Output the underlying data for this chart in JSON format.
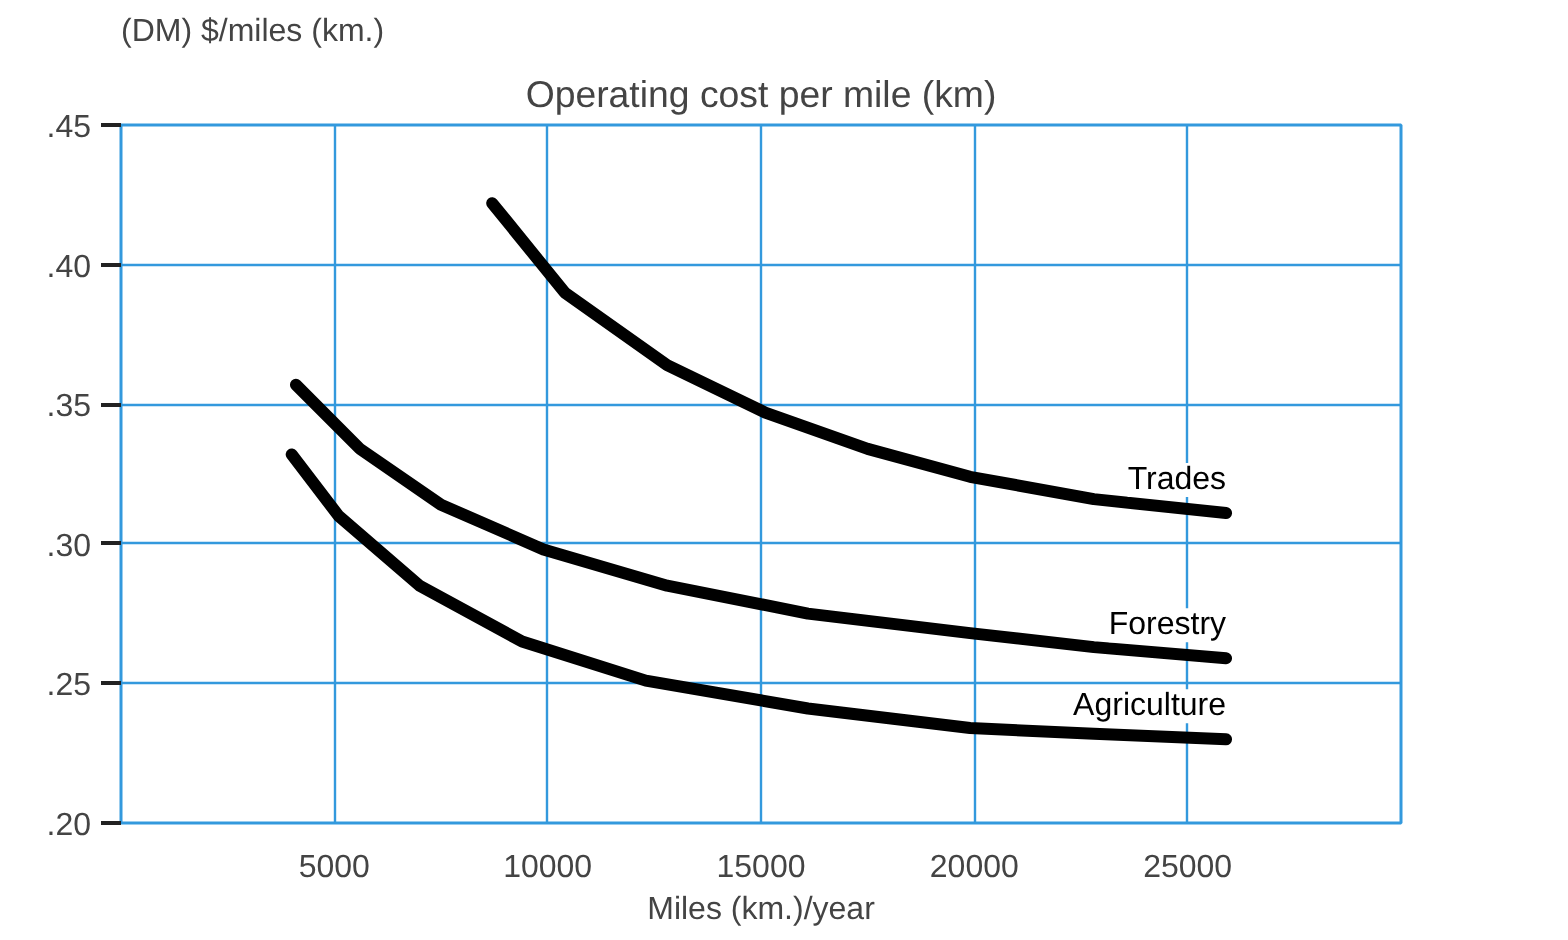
{
  "chart_data": {
    "type": "line",
    "title": "Operating cost per mile (km)",
    "ylabel": "(DM) $/miles (km.)",
    "xlabel": "Miles (km.)/year",
    "xlim": [
      0,
      30000
    ],
    "xticks": [
      5000,
      10000,
      15000,
      20000,
      25000
    ],
    "ylim": [
      0.2,
      0.45
    ],
    "yticks": [
      {
        "value": 0.2,
        "label": ".20"
      },
      {
        "value": 0.25,
        "label": ".25"
      },
      {
        "value": 0.3,
        "label": ".30"
      },
      {
        "value": 0.35,
        "label": ".35"
      },
      {
        "value": 0.4,
        "label": ".40"
      },
      {
        "value": 0.45,
        "label": ".45"
      }
    ],
    "grid": true,
    "legend": false,
    "marker": "none",
    "line_style": "solid",
    "series": [
      {
        "name": "Trades",
        "color": "#000000",
        "x": [
          8700,
          10400,
          12800,
          15100,
          17500,
          19900,
          22800,
          25900
        ],
        "values": [
          0.422,
          0.39,
          0.364,
          0.347,
          0.334,
          0.324,
          0.316,
          0.311
        ]
      },
      {
        "name": "Forestry",
        "color": "#000000",
        "x": [
          4100,
          5600,
          7500,
          9900,
          12800,
          16100,
          19900,
          22800,
          25900
        ],
        "values": [
          0.357,
          0.334,
          0.314,
          0.298,
          0.285,
          0.275,
          0.268,
          0.263,
          0.259
        ]
      },
      {
        "name": "Agriculture",
        "color": "#000000",
        "x": [
          4000,
          5100,
          7000,
          9400,
          12300,
          16100,
          19900,
          22800,
          25900
        ],
        "values": [
          0.332,
          0.31,
          0.285,
          0.265,
          0.251,
          0.241,
          0.234,
          0.232,
          0.23
        ]
      }
    ]
  }
}
